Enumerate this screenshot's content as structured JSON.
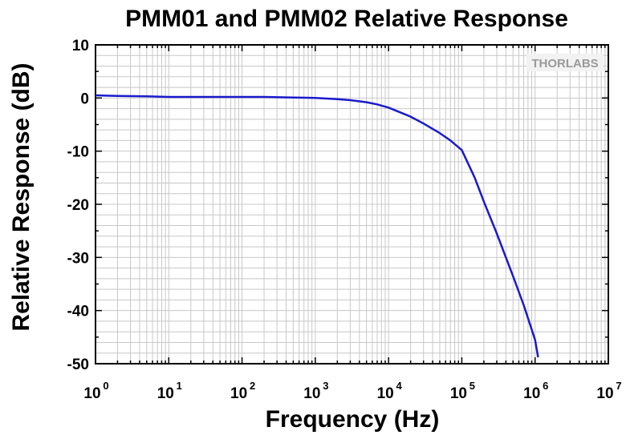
{
  "chart_data": {
    "type": "line",
    "title": "PMM01 and PMM02 Relative Response",
    "xlabel": "Frequency (Hz)",
    "ylabel": "Relative Response (dB)",
    "x_scale": "log",
    "xlim": [
      1,
      10000000
    ],
    "ylim": [
      -50,
      10
    ],
    "x_ticks": [
      {
        "base": "10",
        "exp": "0"
      },
      {
        "base": "10",
        "exp": "1"
      },
      {
        "base": "10",
        "exp": "2"
      },
      {
        "base": "10",
        "exp": "3"
      },
      {
        "base": "10",
        "exp": "4"
      },
      {
        "base": "10",
        "exp": "5"
      },
      {
        "base": "10",
        "exp": "6"
      },
      {
        "base": "10",
        "exp": "7"
      }
    ],
    "y_ticks": [
      "10",
      "0",
      "-10",
      "-20",
      "-30",
      "-40",
      "-50"
    ],
    "y_tick_values": [
      10,
      0,
      -10,
      -20,
      -30,
      -40,
      -50
    ],
    "grid": true,
    "series": [
      {
        "color": "#1a1acc",
        "x": [
          1,
          2,
          5,
          10,
          20,
          50,
          100,
          200,
          500,
          1000,
          2000,
          3000,
          5000,
          7000,
          10000,
          20000,
          30000,
          50000,
          70000,
          100000,
          150000,
          200000,
          300000,
          500000,
          700000,
          1000000,
          1100000
        ],
        "y": [
          0.5,
          0.4,
          0.3,
          0.2,
          0.2,
          0.2,
          0.2,
          0.2,
          0.1,
          0.0,
          -0.2,
          -0.4,
          -0.8,
          -1.2,
          -1.8,
          -3.5,
          -4.8,
          -6.6,
          -8.0,
          -9.8,
          -15.0,
          -19.5,
          -25.5,
          -33.5,
          -39.0,
          -45.5,
          -48.8
        ]
      }
    ],
    "watermark": "THORLABS"
  }
}
